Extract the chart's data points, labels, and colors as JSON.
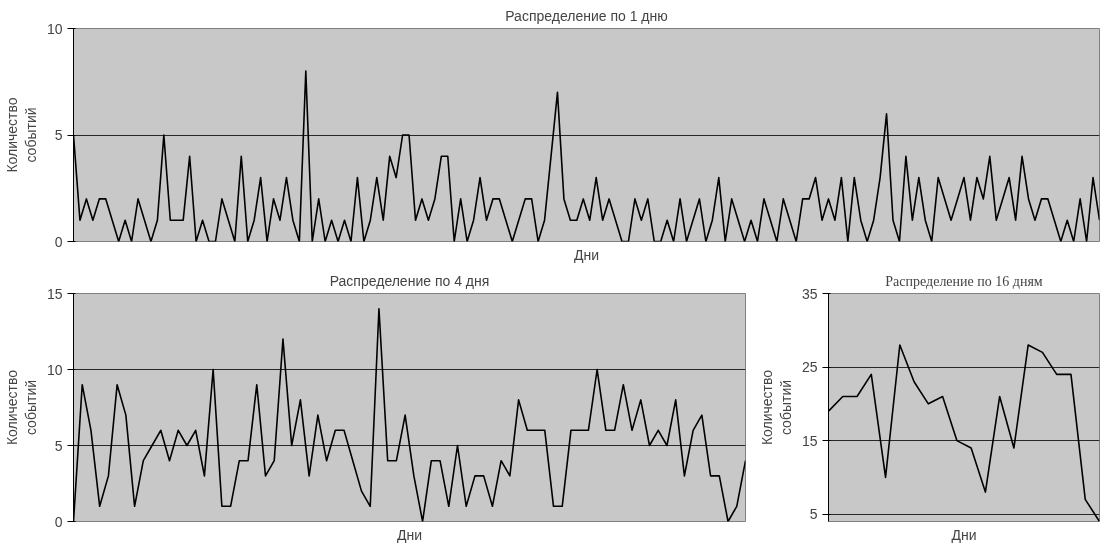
{
  "chart_data": [
    {
      "type": "line",
      "title": "Распределение по 1 дню",
      "xlabel": "Дни",
      "ylabel": "Количество событий",
      "color": "#000000",
      "ylim": [
        0,
        10
      ],
      "yticks": [
        0,
        5,
        10
      ],
      "grid": "y",
      "tick_labels": "y",
      "categories": [
        null,
        null,
        null,
        null,
        null,
        null,
        null,
        null,
        null,
        null,
        null,
        null,
        null,
        null,
        null,
        null,
        null,
        null,
        null,
        null,
        null,
        null,
        null,
        null,
        null,
        null,
        null,
        null,
        null,
        null,
        null,
        null,
        null,
        null,
        null,
        null,
        null,
        null,
        null,
        null,
        null,
        null,
        null,
        null,
        null,
        null,
        null,
        null,
        null,
        null,
        null,
        null,
        null,
        null,
        null,
        null,
        null,
        null,
        null,
        null,
        null,
        null,
        null,
        null,
        null,
        null,
        null,
        null,
        null,
        null,
        null,
        null,
        null,
        null,
        null,
        null,
        null,
        null,
        null,
        null,
        null,
        null,
        null,
        null,
        null,
        null,
        null,
        null,
        null,
        null,
        null,
        null,
        null,
        null,
        null,
        null,
        null,
        null,
        null,
        null,
        null,
        null,
        null,
        null,
        null,
        null,
        null,
        null,
        null,
        null,
        null,
        null,
        null,
        null,
        null,
        null,
        null,
        null,
        null,
        null,
        null,
        null,
        null,
        null,
        null,
        null,
        null,
        null,
        null,
        null,
        null,
        null,
        null,
        null,
        null,
        null,
        null,
        null,
        null,
        null,
        null,
        null,
        null,
        null,
        null,
        null,
        null,
        null,
        null,
        null,
        null,
        null,
        null,
        null,
        null,
        null,
        null,
        null,
        null,
        null
      ],
      "values": [
        5,
        1,
        2,
        1,
        2,
        2,
        1,
        0,
        1,
        0,
        2,
        1,
        0,
        1,
        5,
        1,
        1,
        1,
        4,
        0,
        1,
        0,
        0,
        2,
        1,
        0,
        4,
        0,
        1,
        3,
        0,
        2,
        1,
        3,
        1,
        0,
        8,
        0,
        2,
        0,
        1,
        0,
        1,
        0,
        3,
        0,
        1,
        3,
        1,
        4,
        3,
        5,
        5,
        1,
        2,
        1,
        2,
        4,
        4,
        0,
        2,
        0,
        1,
        3,
        1,
        2,
        2,
        1,
        0,
        1,
        2,
        2,
        0,
        1,
        4,
        7,
        2,
        1,
        1,
        2,
        1,
        3,
        1,
        2,
        1,
        0,
        0,
        2,
        1,
        2,
        0,
        0,
        1,
        0,
        2,
        0,
        1,
        2,
        0,
        1,
        3,
        0,
        2,
        1,
        0,
        1,
        0,
        2,
        1,
        0,
        2,
        1,
        0,
        2,
        2,
        3,
        1,
        2,
        1,
        3,
        0,
        3,
        1,
        0,
        1,
        3,
        6,
        1,
        0,
        4,
        1,
        3,
        1,
        0,
        3,
        2,
        1,
        2,
        3,
        1,
        3,
        2,
        4,
        1,
        2,
        3,
        1,
        4,
        2,
        1,
        2,
        2,
        1,
        0,
        1,
        0,
        2,
        0,
        3,
        1
      ]
    },
    {
      "type": "line",
      "title": "Распределение по 4 дня",
      "xlabel": "Дни",
      "ylabel": "Количество событий",
      "color": "#000000",
      "ylim": [
        0,
        15
      ],
      "yticks": [
        0,
        5,
        10,
        15
      ],
      "grid": "y",
      "tick_labels": "y",
      "categories": [
        null,
        null,
        null,
        null,
        null,
        null,
        null,
        null,
        null,
        null,
        null,
        null,
        null,
        null,
        null,
        null,
        null,
        null,
        null,
        null,
        null,
        null,
        null,
        null,
        null,
        null,
        null,
        null,
        null,
        null,
        null,
        null,
        null,
        null,
        null,
        null,
        null,
        null,
        null,
        null,
        null,
        null,
        null,
        null,
        null,
        null,
        null,
        null,
        null,
        null,
        null,
        null,
        null,
        null,
        null,
        null,
        null,
        null,
        null,
        null,
        null,
        null,
        null,
        null,
        null,
        null,
        null,
        null,
        null,
        null,
        null,
        null,
        null,
        null,
        null,
        null,
        null,
        null
      ],
      "values": [
        0,
        9,
        6,
        1,
        3,
        9,
        7,
        1,
        4,
        5,
        6,
        4,
        6,
        5,
        6,
        3,
        10,
        1,
        1,
        4,
        4,
        9,
        3,
        4,
        12,
        5,
        8,
        3,
        7,
        4,
        6,
        6,
        4,
        2,
        1,
        14,
        4,
        4,
        7,
        3,
        0,
        4,
        4,
        1,
        5,
        1,
        3,
        3,
        1,
        4,
        3,
        8,
        6,
        6,
        6,
        1,
        1,
        6,
        6,
        6,
        10,
        6,
        6,
        9,
        6,
        8,
        5,
        6,
        5,
        8,
        3,
        6,
        7,
        3,
        3,
        0,
        1,
        4
      ]
    },
    {
      "type": "line",
      "title": "Распределение по 16 дням",
      "xlabel": "Дни",
      "ylabel": "Количество событий",
      "color": "#000000",
      "ylim": [
        4,
        35
      ],
      "yticks": [
        5,
        15,
        25,
        35
      ],
      "grid": "y",
      "tick_labels": "y",
      "categories": [
        null,
        null,
        null,
        null,
        null,
        null,
        null,
        null,
        null,
        null,
        null,
        null,
        null,
        null,
        null,
        null,
        null,
        null,
        null,
        null
      ],
      "values": [
        19,
        21,
        21,
        24,
        10,
        28,
        23,
        20,
        21,
        15,
        14,
        8,
        21,
        14,
        28,
        27,
        24,
        24,
        7,
        4
      ]
    }
  ]
}
